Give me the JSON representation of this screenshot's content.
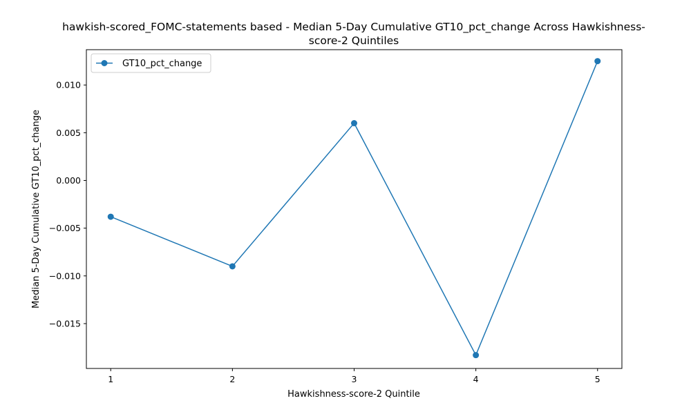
{
  "chart_data": {
    "type": "line",
    "title_lines": [
      "hawkish-scored_FOMC-statements based - Median 5-Day Cumulative GT10_pct_change Across Hawkishness-",
      "score-2 Quintiles"
    ],
    "xlabel": "Hawkishness-score-2 Quintile",
    "ylabel": "Median 5-Day Cumulative GT10_pct_change",
    "x": [
      1,
      2,
      3,
      4,
      5
    ],
    "x_ticks": [
      "1",
      "2",
      "3",
      "4",
      "5"
    ],
    "xlim": [
      0.8,
      5.2
    ],
    "y_ticks": [
      "0.010",
      "0.005",
      "0.000",
      "−0.005",
      "−0.010",
      "−0.015"
    ],
    "y_tick_values": [
      0.01,
      0.005,
      0.0,
      -0.005,
      -0.01,
      -0.015
    ],
    "ylim": [
      -0.0197,
      0.0137
    ],
    "series": [
      {
        "name": "GT10_pct_change",
        "values": [
          -0.0038,
          -0.009,
          0.006,
          -0.0183,
          0.0125
        ],
        "color": "#1f77b4",
        "marker": "circle"
      }
    ],
    "legend_position": "upper-left",
    "grid": false
  }
}
